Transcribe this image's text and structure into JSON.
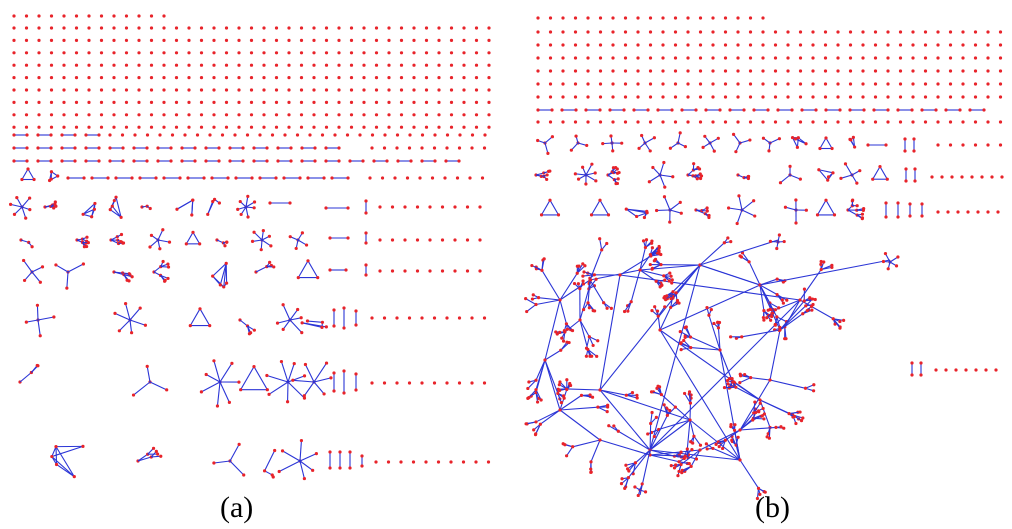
{
  "figure": {
    "panels": [
      {
        "id": "a",
        "label": "(a)"
      },
      {
        "id": "b",
        "label": "(b)"
      }
    ]
  },
  "colors": {
    "node": "#e8232a",
    "edge": "#2b35d6",
    "background": "#ffffff"
  }
}
